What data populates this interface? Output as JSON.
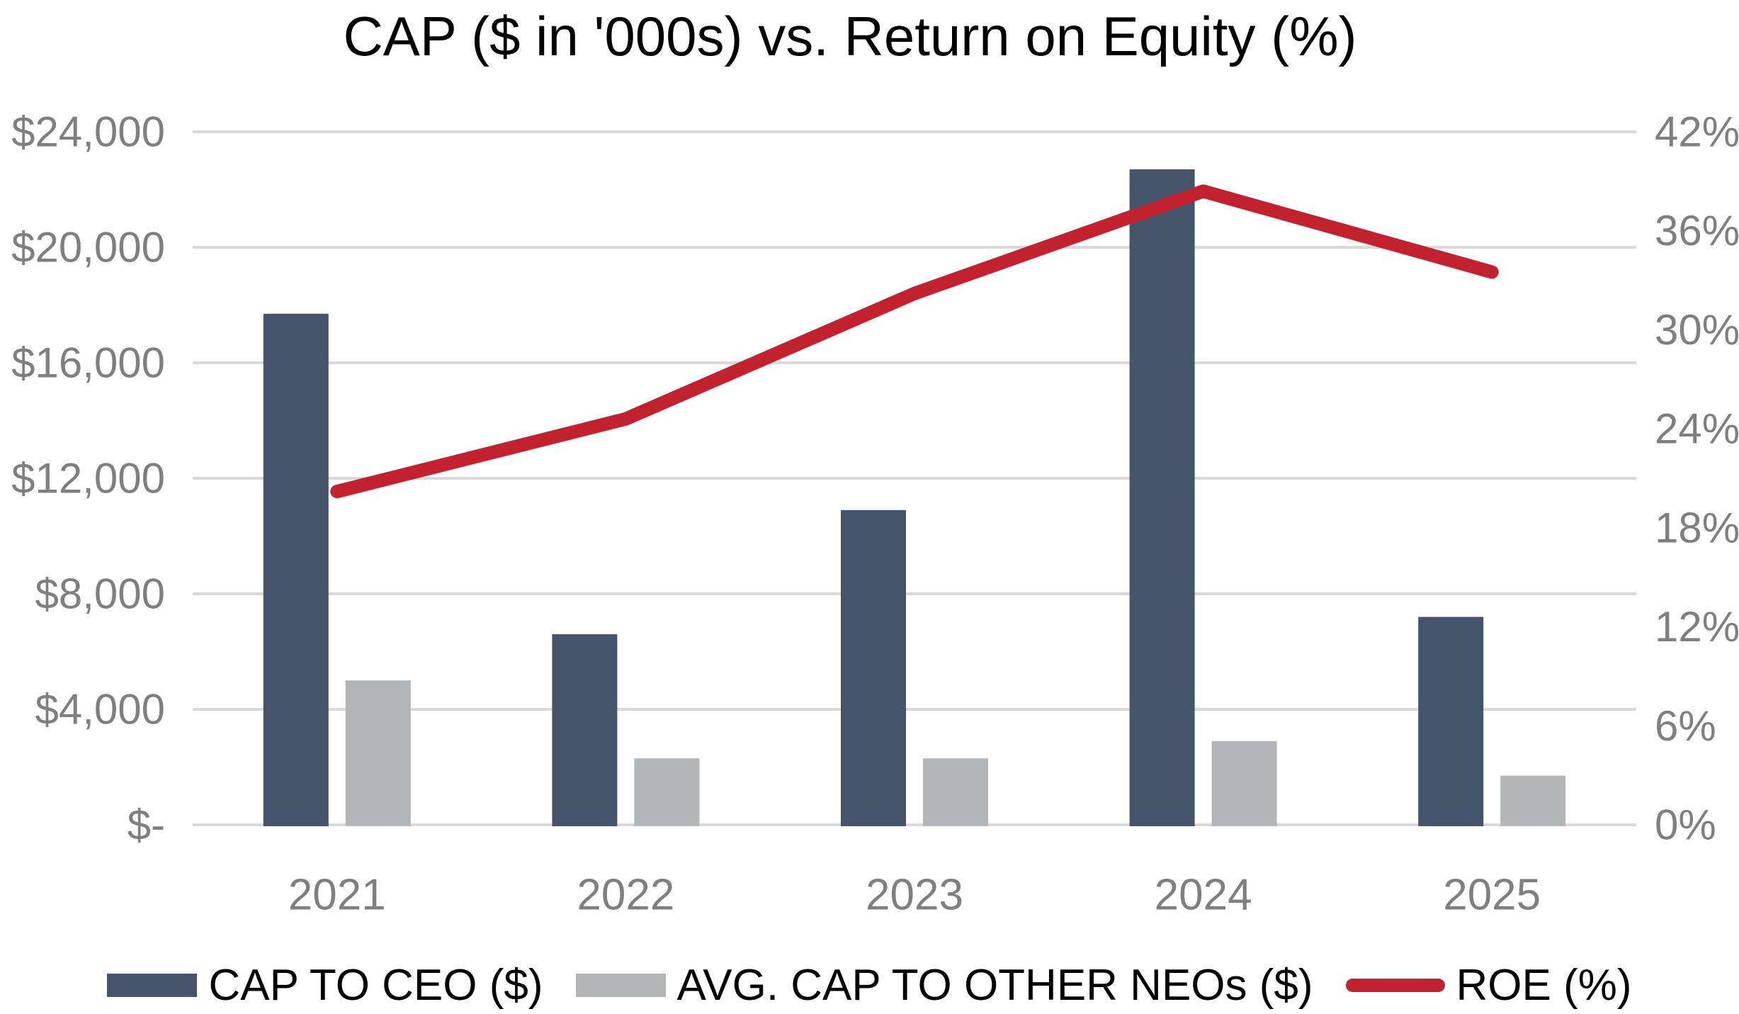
{
  "chart_data": {
    "type": "combo-bar-line",
    "title": "CAP ($ in '000s) vs. Return on Equity (%)",
    "categories": [
      "2021",
      "2022",
      "2023",
      "2024",
      "2025"
    ],
    "series": [
      {
        "name": "CAP TO CEO ($)",
        "type": "bar",
        "axis": "left",
        "values": [
          17700,
          6600,
          10900,
          22700,
          7200
        ]
      },
      {
        "name": "AVG. CAP TO OTHER NEOs ($)",
        "type": "bar",
        "axis": "left",
        "values": [
          5000,
          2300,
          2300,
          2900,
          1700
        ]
      },
      {
        "name": "ROE (%)",
        "type": "line",
        "axis": "right",
        "values": [
          20.2,
          24.6,
          32.2,
          38.4,
          33.5
        ]
      }
    ],
    "left_axis": {
      "max": 24000,
      "ticks": [
        {
          "value": 24000,
          "label": "$24,000"
        },
        {
          "value": 20000,
          "label": "$20,000"
        },
        {
          "value": 16000,
          "label": "$16,000"
        },
        {
          "value": 12000,
          "label": "$12,000"
        },
        {
          "value": 8000,
          "label": "$8,000"
        },
        {
          "value": 4000,
          "label": "$4,000"
        },
        {
          "value": 0,
          "label": "$-"
        }
      ]
    },
    "right_axis": {
      "max": 42,
      "ticks": [
        {
          "value": 42,
          "label": "42%"
        },
        {
          "value": 36,
          "label": "36%"
        },
        {
          "value": 30,
          "label": "30%"
        },
        {
          "value": 24,
          "label": "24%"
        },
        {
          "value": 18,
          "label": "18%"
        },
        {
          "value": 12,
          "label": "12%"
        },
        {
          "value": 6,
          "label": "6%"
        },
        {
          "value": 0,
          "label": "0%"
        }
      ]
    },
    "grid": true,
    "legend_position": "bottom"
  },
  "legend": {
    "items": [
      {
        "label": "CAP TO CEO ($)",
        "swatch": "bar"
      },
      {
        "label": "AVG. CAP TO OTHER NEOs ($)",
        "swatch": "bar"
      },
      {
        "label": "ROE (%)",
        "swatch": "line"
      }
    ]
  },
  "colors": {
    "ceo_bar": "#44546A",
    "neo_bar": "#B2B4B6",
    "roe_line": "#C2212E",
    "gridline": "#D9D9D9",
    "axis_text": "#7F7F7F",
    "title_text": "#000000"
  }
}
